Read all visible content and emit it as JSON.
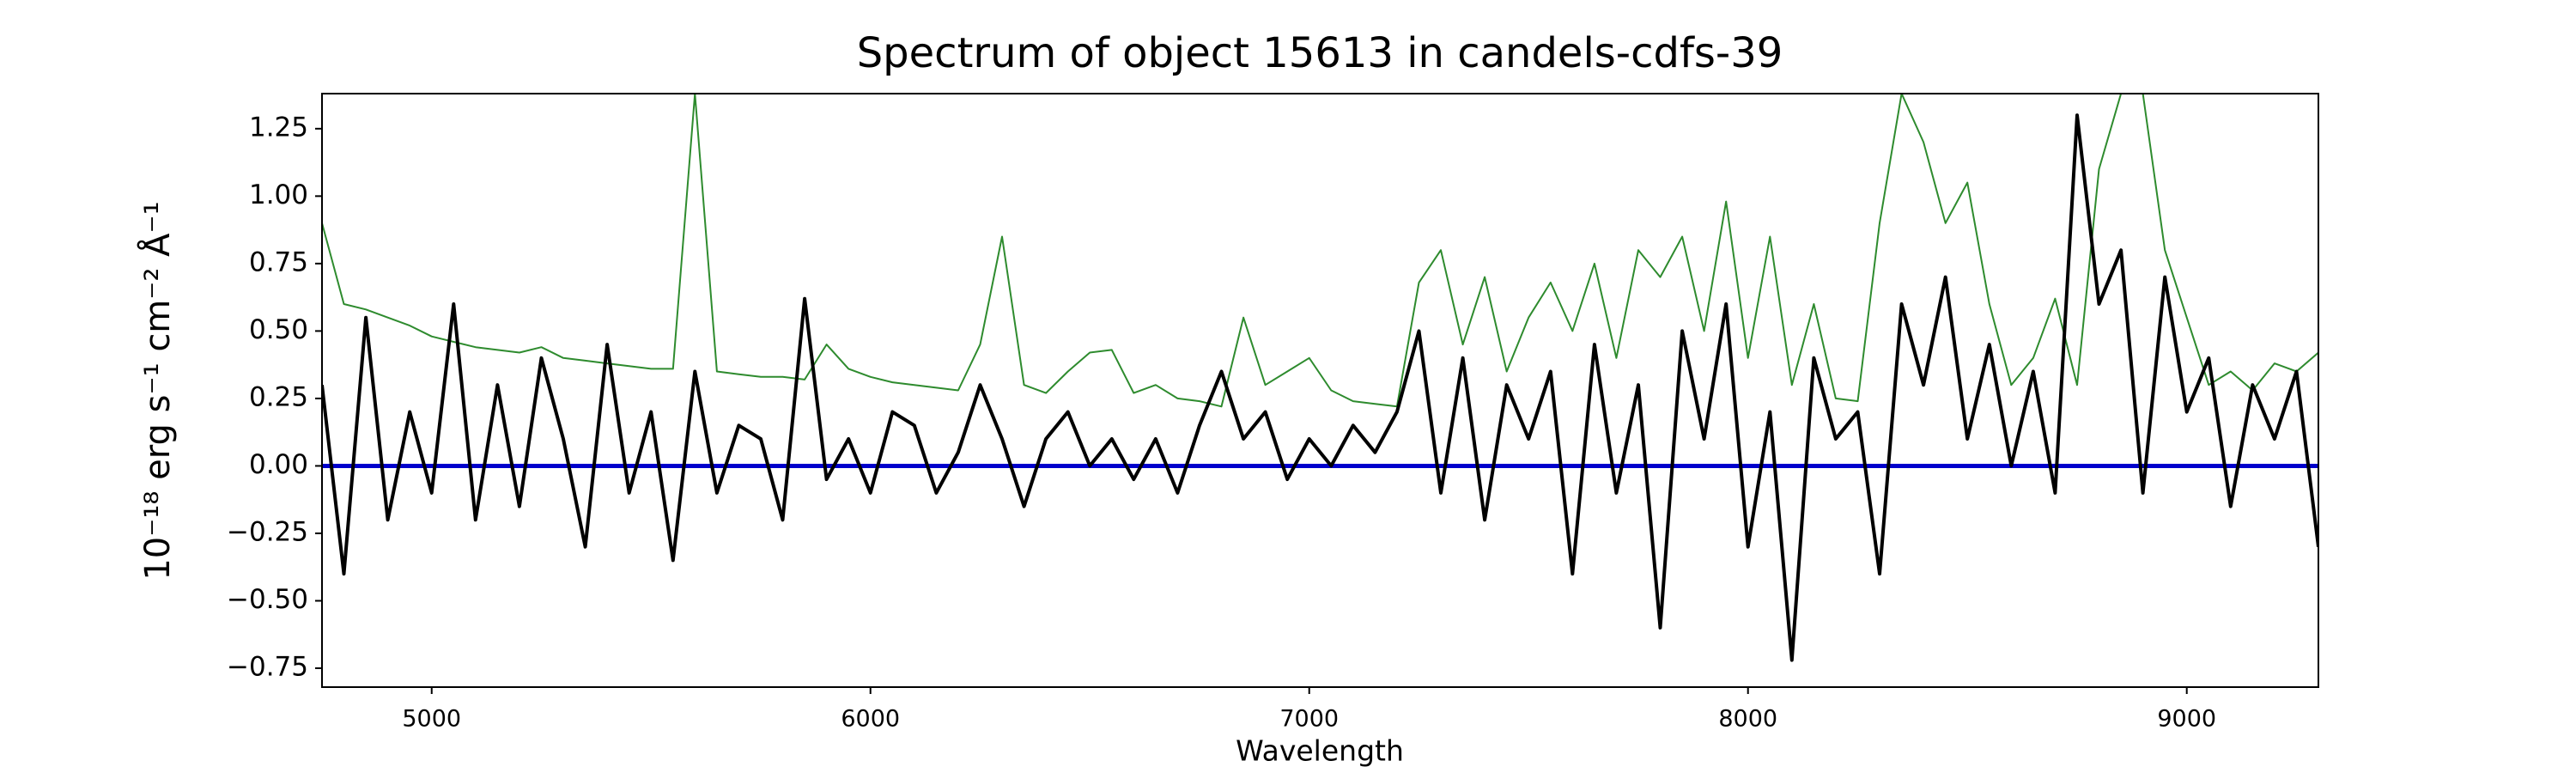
{
  "chart_data": {
    "type": "line",
    "title": "Spectrum of object 15613 in candels-cdfs-39",
    "xlabel": "Wavelength",
    "ylabel": "10⁻¹⁸ erg s⁻¹ cm⁻² Å⁻¹",
    "x": [
      4750,
      4800,
      4850,
      4900,
      4950,
      5000,
      5050,
      5100,
      5150,
      5200,
      5250,
      5300,
      5350,
      5400,
      5450,
      5500,
      5550,
      5600,
      5650,
      5700,
      5750,
      5800,
      5850,
      5900,
      5950,
      6000,
      6050,
      6100,
      6150,
      6200,
      6250,
      6300,
      6350,
      6400,
      6450,
      6500,
      6550,
      6600,
      6650,
      6700,
      6750,
      6800,
      6850,
      6900,
      6950,
      7000,
      7050,
      7100,
      7150,
      7200,
      7250,
      7300,
      7350,
      7400,
      7450,
      7500,
      7550,
      7600,
      7650,
      7700,
      7750,
      7800,
      7850,
      7900,
      7950,
      8000,
      8050,
      8100,
      8150,
      8200,
      8250,
      8300,
      8350,
      8400,
      8450,
      8500,
      8550,
      8600,
      8650,
      8700,
      8750,
      8800,
      8850,
      8900,
      8950,
      9000,
      9050,
      9100,
      9150,
      9200,
      9250,
      9300
    ],
    "series": [
      {
        "color": "#2e8b2e",
        "width": 2,
        "values": [
          0.9,
          0.6,
          0.58,
          0.55,
          0.52,
          0.48,
          0.46,
          0.44,
          0.43,
          0.42,
          0.44,
          0.4,
          0.39,
          0.38,
          0.37,
          0.36,
          0.36,
          1.38,
          0.35,
          0.34,
          0.33,
          0.33,
          0.32,
          0.45,
          0.36,
          0.33,
          0.31,
          0.3,
          0.29,
          0.28,
          0.45,
          0.85,
          0.3,
          0.27,
          0.35,
          0.42,
          0.43,
          0.27,
          0.3,
          0.25,
          0.24,
          0.22,
          0.55,
          0.3,
          0.35,
          0.4,
          0.28,
          0.24,
          0.23,
          0.22,
          0.68,
          0.8,
          0.45,
          0.7,
          0.35,
          0.55,
          0.68,
          0.5,
          0.75,
          0.4,
          0.8,
          0.7,
          0.85,
          0.5,
          0.98,
          0.4,
          0.85,
          0.3,
          0.6,
          0.25,
          0.24,
          0.9,
          1.38,
          1.2,
          0.9,
          1.05,
          0.6,
          0.3,
          0.4,
          0.62,
          0.3,
          1.1,
          1.38,
          1.38,
          0.8,
          0.55,
          0.3,
          0.35,
          0.28,
          0.38,
          0.35,
          0.42
        ]
      },
      {
        "color": "#000000",
        "width": 4,
        "values": [
          0.3,
          -0.4,
          0.55,
          -0.2,
          0.2,
          -0.1,
          0.6,
          -0.2,
          0.3,
          -0.15,
          0.4,
          0.1,
          -0.3,
          0.45,
          -0.1,
          0.2,
          -0.35,
          0.35,
          -0.1,
          0.15,
          0.1,
          -0.2,
          0.62,
          -0.05,
          0.1,
          -0.1,
          0.2,
          0.15,
          -0.1,
          0.05,
          0.3,
          0.1,
          -0.15,
          0.1,
          0.2,
          0.0,
          0.1,
          -0.05,
          0.1,
          -0.1,
          0.15,
          0.35,
          0.1,
          0.2,
          -0.05,
          0.1,
          0.0,
          0.15,
          0.05,
          0.2,
          0.5,
          -0.1,
          0.4,
          -0.2,
          0.3,
          0.1,
          0.35,
          -0.4,
          0.45,
          -0.1,
          0.3,
          -0.6,
          0.5,
          0.1,
          0.6,
          -0.3,
          0.2,
          -0.72,
          0.4,
          0.1,
          0.2,
          -0.4,
          0.6,
          0.3,
          0.7,
          0.1,
          0.45,
          0.0,
          0.35,
          -0.1,
          1.3,
          0.6,
          0.8,
          -0.1,
          0.7,
          0.2,
          0.4,
          -0.15,
          0.3,
          0.1,
          0.35,
          -0.3
        ]
      }
    ],
    "hline": {
      "value": 0,
      "color": "#0000cc"
    },
    "xlim": [
      4750,
      9300
    ],
    "xticks": [
      5000,
      6000,
      7000,
      8000,
      9000
    ],
    "ylim": [
      -0.82,
      1.38
    ],
    "yticks": [
      {
        "value": -0.75,
        "label": "−0.75"
      },
      {
        "value": -0.5,
        "label": "−0.50"
      },
      {
        "value": -0.25,
        "label": "−0.25"
      },
      {
        "value": 0,
        "label": "0.00"
      },
      0.25,
      {
        "value": 0.5,
        "label": "0.50"
      },
      0.75,
      {
        "value": 1,
        "label": "1.00"
      },
      1.25
    ],
    "grid": false
  }
}
